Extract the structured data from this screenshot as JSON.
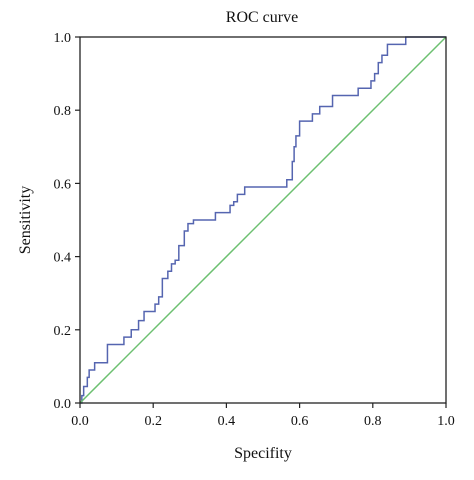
{
  "chart_data": {
    "type": "line",
    "title": "ROC curve",
    "xlabel": "Specifity",
    "ylabel": "Sensitivity",
    "xlim": [
      0,
      1
    ],
    "ylim": [
      0,
      1
    ],
    "xticks": [
      "0.0",
      "0.2",
      "0.4",
      "0.6",
      "0.8",
      "1.0"
    ],
    "yticks": [
      "0.0",
      "0.2",
      "0.4",
      "0.6",
      "0.8",
      "1.0"
    ],
    "grid": false,
    "series": [
      {
        "color": "#5565b0",
        "step": true,
        "points": [
          [
            0.0,
            0.0
          ],
          [
            0.005,
            0.0
          ],
          [
            0.005,
            0.02
          ],
          [
            0.01,
            0.02
          ],
          [
            0.01,
            0.045
          ],
          [
            0.02,
            0.045
          ],
          [
            0.02,
            0.07
          ],
          [
            0.025,
            0.07
          ],
          [
            0.025,
            0.09
          ],
          [
            0.04,
            0.09
          ],
          [
            0.04,
            0.11
          ],
          [
            0.075,
            0.11
          ],
          [
            0.075,
            0.16
          ],
          [
            0.12,
            0.16
          ],
          [
            0.12,
            0.18
          ],
          [
            0.14,
            0.18
          ],
          [
            0.14,
            0.2
          ],
          [
            0.16,
            0.2
          ],
          [
            0.16,
            0.225
          ],
          [
            0.175,
            0.225
          ],
          [
            0.175,
            0.25
          ],
          [
            0.205,
            0.25
          ],
          [
            0.205,
            0.27
          ],
          [
            0.215,
            0.27
          ],
          [
            0.215,
            0.29
          ],
          [
            0.225,
            0.29
          ],
          [
            0.225,
            0.34
          ],
          [
            0.24,
            0.34
          ],
          [
            0.24,
            0.36
          ],
          [
            0.25,
            0.36
          ],
          [
            0.25,
            0.38
          ],
          [
            0.26,
            0.38
          ],
          [
            0.26,
            0.39
          ],
          [
            0.27,
            0.39
          ],
          [
            0.27,
            0.43
          ],
          [
            0.285,
            0.43
          ],
          [
            0.285,
            0.47
          ],
          [
            0.295,
            0.47
          ],
          [
            0.295,
            0.49
          ],
          [
            0.31,
            0.49
          ],
          [
            0.31,
            0.5
          ],
          [
            0.37,
            0.5
          ],
          [
            0.37,
            0.52
          ],
          [
            0.41,
            0.52
          ],
          [
            0.41,
            0.54
          ],
          [
            0.42,
            0.54
          ],
          [
            0.42,
            0.55
          ],
          [
            0.43,
            0.55
          ],
          [
            0.43,
            0.57
          ],
          [
            0.45,
            0.57
          ],
          [
            0.45,
            0.59
          ],
          [
            0.565,
            0.59
          ],
          [
            0.565,
            0.61
          ],
          [
            0.58,
            0.61
          ],
          [
            0.58,
            0.66
          ],
          [
            0.585,
            0.66
          ],
          [
            0.585,
            0.7
          ],
          [
            0.59,
            0.7
          ],
          [
            0.59,
            0.73
          ],
          [
            0.6,
            0.73
          ],
          [
            0.6,
            0.77
          ],
          [
            0.635,
            0.77
          ],
          [
            0.635,
            0.79
          ],
          [
            0.655,
            0.79
          ],
          [
            0.655,
            0.81
          ],
          [
            0.69,
            0.81
          ],
          [
            0.69,
            0.84
          ],
          [
            0.76,
            0.84
          ],
          [
            0.76,
            0.86
          ],
          [
            0.795,
            0.86
          ],
          [
            0.795,
            0.88
          ],
          [
            0.805,
            0.88
          ],
          [
            0.805,
            0.9
          ],
          [
            0.815,
            0.9
          ],
          [
            0.815,
            0.93
          ],
          [
            0.825,
            0.93
          ],
          [
            0.825,
            0.95
          ],
          [
            0.84,
            0.95
          ],
          [
            0.84,
            0.98
          ],
          [
            0.89,
            0.98
          ],
          [
            0.89,
            1.0
          ],
          [
            1.0,
            1.0
          ]
        ]
      },
      {
        "color": "#6cc070",
        "step": false,
        "points": [
          [
            0,
            0
          ],
          [
            1,
            1
          ]
        ]
      }
    ]
  }
}
